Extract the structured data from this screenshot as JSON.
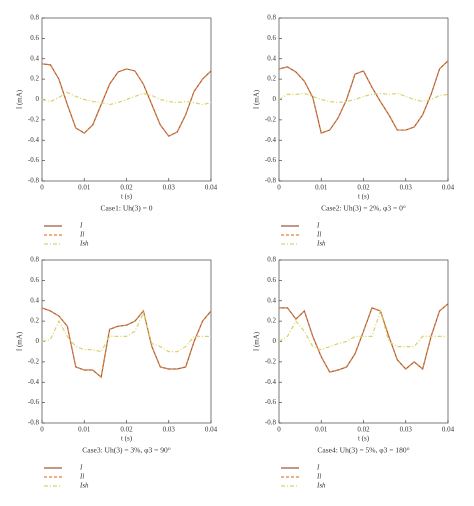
{
  "chart_data": [
    {
      "type": "line",
      "caption": "Case1: Uh(3) = 0",
      "xlabel": "t (s)",
      "ylabel": "I (mA)",
      "xlim": [
        0,
        0.04
      ],
      "ylim": [
        -0.8,
        0.8
      ],
      "xticks": [
        0,
        0.01,
        0.02,
        0.03,
        0.04
      ],
      "yticks": [
        -0.8,
        -0.6,
        -0.4,
        -0.2,
        0,
        0.2,
        0.4,
        0.6,
        0.8
      ],
      "x": [
        0,
        0.002,
        0.004,
        0.006,
        0.008,
        0.01,
        0.012,
        0.014,
        0.016,
        0.018,
        0.02,
        0.022,
        0.024,
        0.026,
        0.028,
        0.03,
        0.032,
        0.034,
        0.036,
        0.038,
        0.04
      ],
      "series": [
        {
          "name": "I",
          "color": "#9b5a3c",
          "dash": "solid",
          "values": [
            0.35,
            0.34,
            0.2,
            -0.05,
            -0.28,
            -0.33,
            -0.25,
            -0.05,
            0.15,
            0.27,
            0.3,
            0.28,
            0.15,
            -0.05,
            -0.25,
            -0.36,
            -0.32,
            -0.15,
            0.08,
            0.2,
            0.28
          ]
        },
        {
          "name": "Il",
          "color": "#e8803a",
          "dash": "dashed",
          "values": [
            0.35,
            0.34,
            0.2,
            -0.05,
            -0.28,
            -0.33,
            -0.25,
            -0.05,
            0.15,
            0.27,
            0.3,
            0.28,
            0.15,
            -0.05,
            -0.25,
            -0.36,
            -0.32,
            -0.15,
            0.08,
            0.2,
            0.28
          ]
        },
        {
          "name": "Ish",
          "color": "#d9d26a",
          "dash": "dashdot",
          "values": [
            0.0,
            -0.02,
            0.02,
            0.07,
            0.03,
            0.0,
            -0.02,
            -0.03,
            -0.05,
            -0.03,
            0.0,
            0.03,
            0.06,
            0.04,
            0.0,
            -0.02,
            -0.03,
            -0.02,
            -0.03,
            -0.05,
            -0.03
          ]
        }
      ]
    },
    {
      "type": "line",
      "caption": "Case2: Uh(3) = 2%, φ3 = 0°",
      "xlabel": "t (s)",
      "ylabel": "I (mA)",
      "xlim": [
        0,
        0.04
      ],
      "ylim": [
        -0.8,
        0.8
      ],
      "xticks": [
        0,
        0.01,
        0.02,
        0.03,
        0.04
      ],
      "yticks": [
        -0.8,
        -0.6,
        -0.4,
        -0.2,
        0,
        0.2,
        0.4,
        0.6,
        0.8
      ],
      "x": [
        0,
        0.002,
        0.004,
        0.006,
        0.008,
        0.01,
        0.012,
        0.014,
        0.016,
        0.018,
        0.02,
        0.022,
        0.024,
        0.026,
        0.028,
        0.03,
        0.032,
        0.034,
        0.036,
        0.038,
        0.04
      ],
      "series": [
        {
          "name": "I",
          "color": "#9b5a3c",
          "dash": "solid",
          "values": [
            0.3,
            0.32,
            0.27,
            0.18,
            0.02,
            -0.33,
            -0.3,
            -0.18,
            0.0,
            0.25,
            0.28,
            0.12,
            -0.02,
            -0.15,
            -0.3,
            -0.3,
            -0.27,
            -0.15,
            0.05,
            0.3,
            0.38
          ]
        },
        {
          "name": "Il",
          "color": "#e8803a",
          "dash": "dashed",
          "values": [
            0.3,
            0.32,
            0.27,
            0.18,
            0.02,
            -0.33,
            -0.3,
            -0.18,
            0.0,
            0.25,
            0.28,
            0.12,
            -0.02,
            -0.15,
            -0.3,
            -0.3,
            -0.27,
            -0.15,
            0.05,
            0.3,
            0.38
          ]
        },
        {
          "name": "Ish",
          "color": "#d9d26a",
          "dash": "dashdot",
          "values": [
            0.0,
            0.05,
            0.05,
            0.06,
            0.03,
            0.0,
            -0.02,
            -0.03,
            -0.02,
            0.0,
            0.03,
            0.05,
            0.06,
            0.05,
            0.06,
            0.03,
            0.0,
            -0.02,
            0.0,
            0.04,
            0.05
          ]
        }
      ]
    },
    {
      "type": "line",
      "caption": "Case3: Uh(3) = 3%, φ3 = 90°",
      "xlabel": "t (s)",
      "ylabel": "I (mA)",
      "xlim": [
        0,
        0.04
      ],
      "ylim": [
        -0.8,
        0.8
      ],
      "xticks": [
        0,
        0.01,
        0.02,
        0.03,
        0.04
      ],
      "yticks": [
        -0.8,
        -0.6,
        -0.4,
        -0.2,
        0,
        0.2,
        0.4,
        0.6,
        0.8
      ],
      "x": [
        0,
        0.002,
        0.004,
        0.006,
        0.008,
        0.01,
        0.012,
        0.014,
        0.016,
        0.018,
        0.02,
        0.022,
        0.024,
        0.026,
        0.028,
        0.03,
        0.032,
        0.034,
        0.036,
        0.038,
        0.04
      ],
      "series": [
        {
          "name": "I",
          "color": "#9b5a3c",
          "dash": "solid",
          "values": [
            0.33,
            0.3,
            0.25,
            0.15,
            -0.25,
            -0.28,
            -0.28,
            -0.35,
            0.12,
            0.15,
            0.16,
            0.2,
            0.3,
            -0.05,
            -0.25,
            -0.27,
            -0.27,
            -0.25,
            0.0,
            0.2,
            0.3
          ]
        },
        {
          "name": "Il",
          "color": "#e8803a",
          "dash": "dashed",
          "values": [
            0.33,
            0.3,
            0.25,
            0.15,
            -0.25,
            -0.28,
            -0.28,
            -0.35,
            0.12,
            0.15,
            0.16,
            0.2,
            0.3,
            -0.05,
            -0.25,
            -0.27,
            -0.27,
            -0.25,
            0.0,
            0.2,
            0.3
          ]
        },
        {
          "name": "Ish",
          "color": "#d9d26a",
          "dash": "dashdot",
          "values": [
            0.0,
            0.02,
            0.2,
            0.05,
            -0.05,
            -0.08,
            -0.08,
            -0.1,
            0.05,
            0.05,
            0.05,
            0.1,
            0.28,
            -0.02,
            -0.05,
            -0.1,
            -0.1,
            -0.05,
            0.05,
            0.05,
            0.05
          ]
        }
      ]
    },
    {
      "type": "line",
      "caption": "Case4: Uh(3) = 5%, φ3 = 180°",
      "xlabel": "t (s)",
      "ylabel": "I (mA)",
      "xlim": [
        0,
        0.04
      ],
      "ylim": [
        -0.8,
        0.8
      ],
      "xticks": [
        0,
        0.01,
        0.02,
        0.03,
        0.04
      ],
      "yticks": [
        -0.8,
        -0.6,
        -0.4,
        -0.2,
        0,
        0.2,
        0.4,
        0.6,
        0.8
      ],
      "x": [
        0,
        0.002,
        0.004,
        0.006,
        0.008,
        0.01,
        0.012,
        0.014,
        0.016,
        0.018,
        0.02,
        0.022,
        0.024,
        0.026,
        0.028,
        0.03,
        0.032,
        0.034,
        0.036,
        0.038,
        0.04
      ],
      "series": [
        {
          "name": "I",
          "color": "#9b5a3c",
          "dash": "solid",
          "values": [
            0.33,
            0.33,
            0.22,
            0.3,
            0.05,
            -0.15,
            -0.3,
            -0.28,
            -0.25,
            -0.12,
            0.1,
            0.33,
            0.3,
            0.05,
            -0.18,
            -0.27,
            -0.2,
            -0.27,
            0.05,
            0.3,
            0.37
          ]
        },
        {
          "name": "Il",
          "color": "#e8803a",
          "dash": "dashed",
          "values": [
            0.33,
            0.33,
            0.22,
            0.3,
            0.05,
            -0.15,
            -0.3,
            -0.28,
            -0.25,
            -0.12,
            0.1,
            0.33,
            0.3,
            0.05,
            -0.18,
            -0.27,
            -0.2,
            -0.27,
            0.05,
            0.3,
            0.37
          ]
        },
        {
          "name": "Ish",
          "color": "#d9d26a",
          "dash": "dashdot",
          "values": [
            0.0,
            0.05,
            0.2,
            0.1,
            -0.05,
            -0.08,
            -0.05,
            -0.02,
            0.0,
            0.05,
            0.05,
            0.05,
            0.3,
            0.0,
            -0.05,
            -0.05,
            -0.05,
            0.05,
            0.05,
            0.05,
            0.05
          ]
        }
      ]
    }
  ]
}
